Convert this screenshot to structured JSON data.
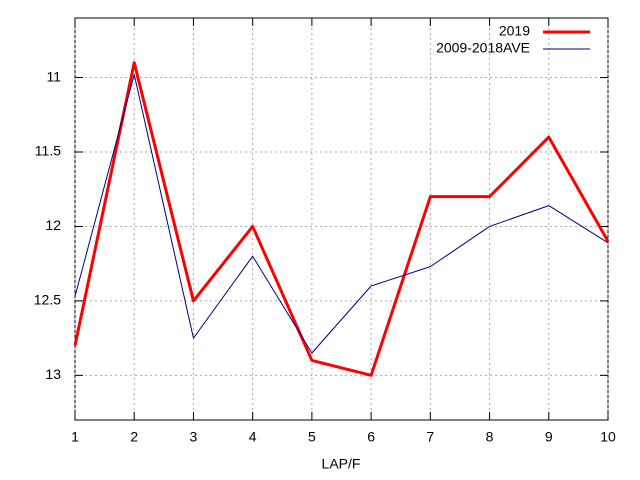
{
  "chart_data": {
    "type": "line",
    "x_label": "LAP/F",
    "x": [
      1,
      2,
      3,
      4,
      5,
      6,
      7,
      8,
      9,
      10
    ],
    "series": [
      {
        "name": "2019",
        "color": "#ff0000",
        "width": 3,
        "values": [
          12.8,
          10.9,
          12.5,
          12.0,
          12.9,
          13.0,
          11.8,
          11.8,
          11.4,
          12.1
        ]
      },
      {
        "name": "2009-2018AVE",
        "color": "#000080",
        "width": 1,
        "values": [
          12.47,
          10.98,
          12.75,
          12.2,
          12.85,
          12.4,
          12.27,
          12.0,
          11.86,
          12.11
        ]
      }
    ],
    "xlim": [
      1,
      10
    ],
    "xticks": [
      1,
      2,
      3,
      4,
      5,
      6,
      7,
      8,
      9,
      10
    ],
    "ylim": [
      13.3,
      10.6
    ],
    "yticks": [
      11,
      11.5,
      12,
      12.5,
      13
    ],
    "grid": true,
    "legend": "top-right"
  }
}
